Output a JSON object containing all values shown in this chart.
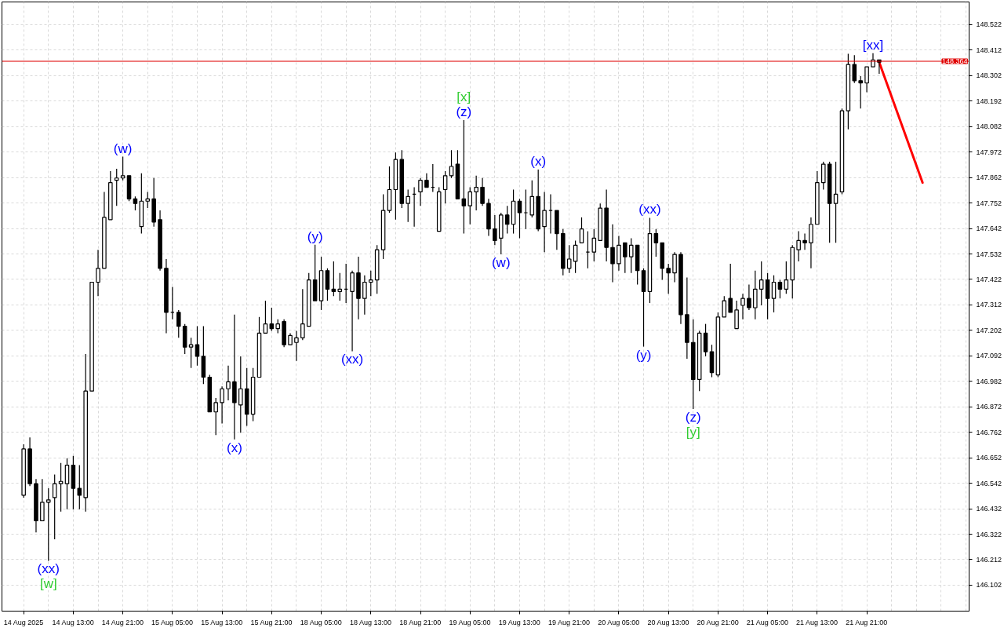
{
  "chart_data": {
    "type": "candlestick",
    "categories": [
      "14 Aug 2025",
      null,
      null,
      null,
      null,
      null,
      null,
      null,
      "14 Aug 13:00",
      null,
      null,
      null,
      null,
      null,
      null,
      null,
      "14 Aug 21:00",
      null,
      null,
      null,
      null,
      null,
      null,
      null,
      "15 Aug 05:00",
      null,
      null,
      null,
      null,
      null,
      null,
      null,
      "15 Aug 13:00",
      null,
      null,
      null,
      null,
      null,
      null,
      null,
      "15 Aug 21:00",
      null,
      null,
      null,
      null,
      null,
      null,
      null,
      "18 Aug 05:00",
      null,
      null,
      null,
      null,
      null,
      null,
      null,
      "18 Aug 13:00",
      null,
      null,
      null,
      null,
      null,
      null,
      null,
      "18 Aug 21:00",
      null,
      null,
      null,
      null,
      null,
      null,
      null,
      "19 Aug 05:00",
      null,
      null,
      null,
      null,
      null,
      null,
      null,
      "19 Aug 13:00",
      null,
      null,
      null,
      null,
      null,
      null,
      null,
      "19 Aug 21:00",
      null,
      null,
      null,
      null,
      null,
      null,
      null,
      "20 Aug 05:00",
      null,
      null,
      null,
      null,
      null,
      null,
      null,
      "20 Aug 13:00",
      null,
      null,
      null,
      null,
      null,
      null,
      null,
      "20 Aug 21:00",
      null,
      null,
      null,
      null,
      null,
      null,
      null,
      "21 Aug 05:00",
      null,
      null,
      null,
      null,
      null,
      null,
      null,
      "21 Aug 13:00",
      null,
      null,
      null,
      null,
      null,
      null,
      null,
      "21 Aug 21:00",
      null,
      null,
      null,
      null,
      null,
      null,
      null,
      null,
      null,
      null,
      null,
      null,
      null,
      null,
      null,
      null
    ],
    "ohlc": [
      [
        146.49,
        146.71,
        146.48,
        146.69
      ],
      [
        146.69,
        146.74,
        146.53,
        146.54
      ],
      [
        146.54,
        146.56,
        146.33,
        146.38
      ],
      [
        146.38,
        146.56,
        146.38,
        146.46
      ],
      [
        146.46,
        146.52,
        146.207,
        146.47
      ],
      [
        146.48,
        146.58,
        146.3,
        146.54
      ],
      [
        146.54,
        146.63,
        146.42,
        146.55
      ],
      [
        146.54,
        146.65,
        146.43,
        146.62
      ],
      [
        146.62,
        146.66,
        146.43,
        146.52
      ],
      [
        146.52,
        146.62,
        146.43,
        146.49
      ],
      [
        146.48,
        147.1,
        146.42,
        146.94
      ],
      [
        146.94,
        147.41,
        146.94,
        147.41
      ],
      [
        147.41,
        147.55,
        147.35,
        147.47
      ],
      [
        147.47,
        147.8,
        147.47,
        147.69
      ],
      [
        147.68,
        147.89,
        147.68,
        147.84
      ],
      [
        147.85,
        147.9,
        147.74,
        147.86
      ],
      [
        147.86,
        147.952,
        147.85,
        147.87
      ],
      [
        147.87,
        147.87,
        147.76,
        147.77
      ],
      [
        147.77,
        147.78,
        147.72,
        147.75
      ],
      [
        147.65,
        147.88,
        147.62,
        147.76
      ],
      [
        147.76,
        147.8,
        147.73,
        147.77
      ],
      [
        147.77,
        147.86,
        147.65,
        147.67
      ],
      [
        147.68,
        147.72,
        147.46,
        147.47
      ],
      [
        147.47,
        147.51,
        147.19,
        147.28
      ],
      [
        147.28,
        147.39,
        147.25,
        147.28
      ],
      [
        147.28,
        147.29,
        147.17,
        147.22
      ],
      [
        147.22,
        147.23,
        147.1,
        147.13
      ],
      [
        147.13,
        147.17,
        147.04,
        147.14
      ],
      [
        147.14,
        147.22,
        147.05,
        147.09
      ],
      [
        147.09,
        147.22,
        146.97,
        147.0
      ],
      [
        147.0,
        147.01,
        146.85,
        146.85
      ],
      [
        146.85,
        146.91,
        146.75,
        146.89
      ],
      [
        146.89,
        146.96,
        146.8,
        146.95
      ],
      [
        146.95,
        147.05,
        146.9,
        146.98
      ],
      [
        146.98,
        147.27,
        146.731,
        146.89
      ],
      [
        146.88,
        147.09,
        146.76,
        146.95
      ],
      [
        146.95,
        147.04,
        146.79,
        146.84
      ],
      [
        146.84,
        147.04,
        146.81,
        147.0
      ],
      [
        147.0,
        147.26,
        147.0,
        147.19
      ],
      [
        147.19,
        147.33,
        147.19,
        147.23
      ],
      [
        147.23,
        147.3,
        147.2,
        147.21
      ],
      [
        147.21,
        147.25,
        147.19,
        147.23
      ],
      [
        147.24,
        147.25,
        147.13,
        147.14
      ],
      [
        147.14,
        147.19,
        147.14,
        147.18
      ],
      [
        147.15,
        147.2,
        147.07,
        147.17
      ],
      [
        147.17,
        147.38,
        147.16,
        147.23
      ],
      [
        147.22,
        147.45,
        147.22,
        147.42
      ],
      [
        147.42,
        147.572,
        147.33,
        147.33
      ],
      [
        147.33,
        147.52,
        147.29,
        147.46
      ],
      [
        147.46,
        147.47,
        147.33,
        147.38
      ],
      [
        147.38,
        147.5,
        147.35,
        147.37
      ],
      [
        147.37,
        147.45,
        147.33,
        147.38
      ],
      [
        147.38,
        147.49,
        147.32,
        147.38
      ],
      [
        147.37,
        147.46,
        147.112,
        147.45
      ],
      [
        147.45,
        147.52,
        147.25,
        147.34
      ],
      [
        147.34,
        147.44,
        147.27,
        147.41
      ],
      [
        147.41,
        147.46,
        147.35,
        147.42
      ],
      [
        147.42,
        147.57,
        147.36,
        147.55
      ],
      [
        147.55,
        147.79,
        147.51,
        147.72
      ],
      [
        147.72,
        147.91,
        147.71,
        147.81
      ],
      [
        147.81,
        147.97,
        147.68,
        147.94
      ],
      [
        147.94,
        147.98,
        147.73,
        147.75
      ],
      [
        147.75,
        147.81,
        147.67,
        147.78
      ],
      [
        147.79,
        147.82,
        147.65,
        147.79
      ],
      [
        147.8,
        147.86,
        147.74,
        147.85
      ],
      [
        147.85,
        147.88,
        147.82,
        147.82
      ],
      [
        147.82,
        147.92,
        147.8,
        147.82
      ],
      [
        147.63,
        147.82,
        147.63,
        147.8
      ],
      [
        147.81,
        147.89,
        147.75,
        147.87
      ],
      [
        147.87,
        147.98,
        147.86,
        147.91
      ],
      [
        147.92,
        147.98,
        147.77,
        147.77
      ],
      [
        147.77,
        148.11,
        147.62,
        147.74
      ],
      [
        147.74,
        147.82,
        147.66,
        147.8
      ],
      [
        147.8,
        147.87,
        147.72,
        147.82
      ],
      [
        147.82,
        147.86,
        147.74,
        147.75
      ],
      [
        147.75,
        147.77,
        147.61,
        147.64
      ],
      [
        147.64,
        147.7,
        147.57,
        147.59
      ],
      [
        147.6,
        147.71,
        147.53,
        147.7
      ],
      [
        147.7,
        147.74,
        147.62,
        147.66
      ],
      [
        147.66,
        147.81,
        147.62,
        147.76
      ],
      [
        147.76,
        147.77,
        147.6,
        147.71
      ],
      [
        147.71,
        147.81,
        147.64,
        147.71
      ],
      [
        147.7,
        147.85,
        147.69,
        147.78
      ],
      [
        147.78,
        147.896,
        147.63,
        147.64
      ],
      [
        147.65,
        147.8,
        147.54,
        147.72
      ],
      [
        147.72,
        147.79,
        147.62,
        147.72
      ],
      [
        147.72,
        147.72,
        147.55,
        147.62
      ],
      [
        147.62,
        147.64,
        147.44,
        147.47
      ],
      [
        147.47,
        147.57,
        147.45,
        147.51
      ],
      [
        147.5,
        147.59,
        147.45,
        147.57
      ],
      [
        147.58,
        147.69,
        147.58,
        147.64
      ],
      [
        147.54,
        147.63,
        147.47,
        147.54
      ],
      [
        147.54,
        147.64,
        147.5,
        147.6
      ],
      [
        147.59,
        147.75,
        147.59,
        147.73
      ],
      [
        147.73,
        147.81,
        147.5,
        147.56
      ],
      [
        147.56,
        147.66,
        147.41,
        147.49
      ],
      [
        147.49,
        147.61,
        147.46,
        147.57
      ],
      [
        147.58,
        147.58,
        147.45,
        147.52
      ],
      [
        147.52,
        147.6,
        147.45,
        147.57
      ],
      [
        147.57,
        147.57,
        147.4,
        147.46
      ],
      [
        147.46,
        147.47,
        147.132,
        147.37
      ],
      [
        147.37,
        147.688,
        147.32,
        147.62
      ],
      [
        147.62,
        147.64,
        147.52,
        147.58
      ],
      [
        147.58,
        147.58,
        147.42,
        147.47
      ],
      [
        147.47,
        147.49,
        147.36,
        147.45
      ],
      [
        147.45,
        147.54,
        147.41,
        147.53
      ],
      [
        147.53,
        147.54,
        147.23,
        147.27
      ],
      [
        147.27,
        147.43,
        147.08,
        147.15
      ],
      [
        147.15,
        147.25,
        146.863,
        146.99
      ],
      [
        146.99,
        147.2,
        146.94,
        147.19
      ],
      [
        147.19,
        147.23,
        147.09,
        147.11
      ],
      [
        147.11,
        147.14,
        147.0,
        147.02
      ],
      [
        147.01,
        147.28,
        147.0,
        147.26
      ],
      [
        147.26,
        147.35,
        147.26,
        147.33
      ],
      [
        147.34,
        147.49,
        147.28,
        147.28
      ],
      [
        147.21,
        147.33,
        147.21,
        147.29
      ],
      [
        147.31,
        147.36,
        147.25,
        147.34
      ],
      [
        147.34,
        147.4,
        147.29,
        147.3
      ],
      [
        147.3,
        147.46,
        147.25,
        147.38
      ],
      [
        147.38,
        147.5,
        147.31,
        147.42
      ],
      [
        147.42,
        147.45,
        147.25,
        147.34
      ],
      [
        147.34,
        147.44,
        147.28,
        147.41
      ],
      [
        147.41,
        147.42,
        147.34,
        147.38
      ],
      [
        147.38,
        147.5,
        147.36,
        147.42
      ],
      [
        147.42,
        147.57,
        147.34,
        147.56
      ],
      [
        147.55,
        147.63,
        147.5,
        147.59
      ],
      [
        147.59,
        147.62,
        147.55,
        147.58
      ],
      [
        147.58,
        147.69,
        147.47,
        147.66
      ],
      [
        147.66,
        147.89,
        147.66,
        147.84
      ],
      [
        147.84,
        147.93,
        147.81,
        147.92
      ],
      [
        147.92,
        147.93,
        147.58,
        147.75
      ],
      [
        147.75,
        147.93,
        147.58,
        147.79
      ],
      [
        147.8,
        148.16,
        147.79,
        148.15
      ],
      [
        148.15,
        148.396,
        148.07,
        148.35
      ],
      [
        148.35,
        148.39,
        148.27,
        148.28
      ],
      [
        148.28,
        148.3,
        148.16,
        148.27
      ],
      [
        148.27,
        148.34,
        148.23,
        148.34
      ],
      [
        148.34,
        148.399,
        148.34,
        148.37
      ],
      [
        148.37,
        148.37,
        148.31,
        148.36
      ],
      null,
      null,
      null,
      null,
      null,
      null,
      null,
      null,
      null,
      null,
      null,
      null,
      null,
      null
    ],
    "series": [
      {
        "type": "line",
        "color": "#ff0000",
        "values": [
          null,
          null,
          null,
          null,
          null,
          null,
          null,
          null,
          null,
          null,
          null,
          null,
          null,
          null,
          null,
          null,
          null,
          null,
          null,
          null,
          null,
          null,
          null,
          null,
          null,
          null,
          null,
          null,
          null,
          null,
          null,
          null,
          null,
          null,
          null,
          null,
          null,
          null,
          null,
          null,
          null,
          null,
          null,
          null,
          null,
          null,
          null,
          null,
          null,
          null,
          null,
          null,
          null,
          null,
          null,
          null,
          null,
          null,
          null,
          null,
          null,
          null,
          null,
          null,
          null,
          null,
          null,
          null,
          null,
          null,
          null,
          null,
          null,
          null,
          null,
          null,
          null,
          null,
          null,
          null,
          null,
          null,
          null,
          null,
          null,
          null,
          null,
          null,
          null,
          null,
          null,
          null,
          null,
          null,
          null,
          null,
          null,
          null,
          null,
          null,
          null,
          null,
          null,
          null,
          null,
          null,
          null,
          null,
          null,
          null,
          null,
          null,
          null,
          null,
          null,
          null,
          null,
          null,
          null,
          null,
          null,
          null,
          null,
          null,
          null,
          null,
          null,
          null,
          null,
          null,
          null,
          null,
          null,
          null,
          null,
          null,
          null,
          null,
          148.36,
          null,
          null,
          null,
          null,
          null,
          null,
          147.84,
          null,
          null,
          null,
          null,
          null,
          null,
          null
        ]
      }
    ],
    "ylim": [
      145.99,
      148.62
    ],
    "yticks": [
      146.102,
      146.212,
      146.322,
      146.432,
      146.542,
      146.652,
      146.762,
      146.872,
      146.982,
      147.092,
      147.202,
      147.312,
      147.422,
      147.532,
      147.642,
      147.752,
      147.862,
      147.972,
      148.082,
      148.192,
      148.302,
      148.412,
      148.522
    ],
    "grid": true,
    "ref_lines": [
      {
        "axis": "y",
        "value": 148.364,
        "label": "148.364",
        "color": "#e00000"
      }
    ],
    "annotations": [
      {
        "text": "(xx)",
        "y": 146.207
      },
      {
        "text": "[w]",
        "y": 146.207
      },
      {
        "text": "(w)",
        "y": 147.952
      },
      {
        "text": "(x)",
        "y": 146.731
      },
      {
        "text": "(y)",
        "y": 147.572
      },
      {
        "text": "(xx)",
        "y": 147.112
      },
      {
        "text": "(z)",
        "y": 148.11
      },
      {
        "text": "[x]",
        "y": 148.11
      },
      {
        "text": "(w)",
        "y": 147.53
      },
      {
        "text": "(x)",
        "y": 147.896
      },
      {
        "text": "(xx)",
        "y": 147.688
      },
      {
        "text": "(y)",
        "y": 147.132
      },
      {
        "text": "(z)",
        "y": 146.863
      },
      {
        "text": "[y]",
        "y": 146.863
      },
      {
        "text": "[xx]",
        "y": 148.399
      }
    ]
  }
}
